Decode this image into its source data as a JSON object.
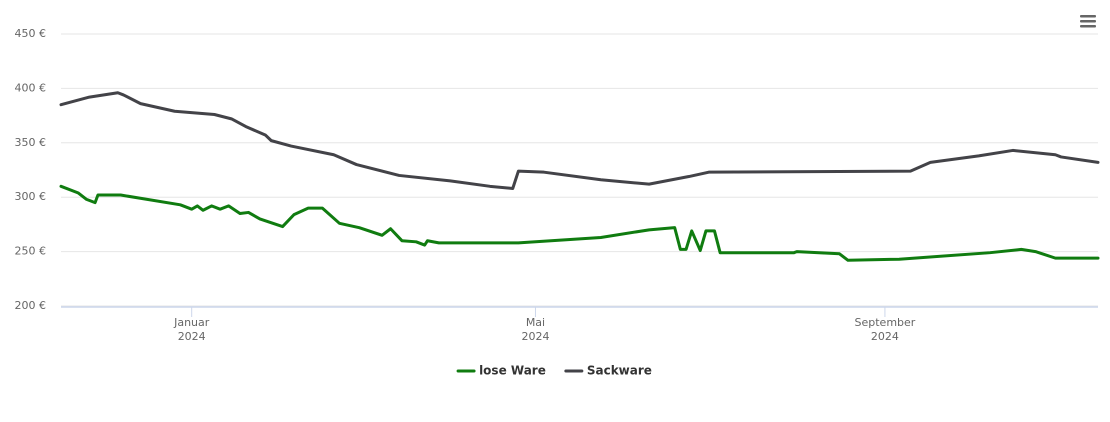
{
  "chart_data": {
    "type": "line",
    "series": [
      {
        "name": "lose Ware",
        "color": "#107c10",
        "x": [
          "2023-11-16",
          "2023-11-22",
          "2023-11-25",
          "2023-11-28",
          "2023-11-29",
          "2023-12-07",
          "2023-12-28",
          "2024-01-01",
          "2024-01-03",
          "2024-01-05",
          "2024-01-08",
          "2024-01-11",
          "2024-01-14",
          "2024-01-18",
          "2024-01-21",
          "2024-01-25",
          "2024-02-02",
          "2024-02-06",
          "2024-02-11",
          "2024-02-16",
          "2024-02-22",
          "2024-02-29",
          "2024-03-08",
          "2024-03-11",
          "2024-03-15",
          "2024-03-20",
          "2024-03-23",
          "2024-03-24",
          "2024-03-28",
          "2024-04-25",
          "2024-05-24",
          "2024-06-10",
          "2024-06-19",
          "2024-06-21",
          "2024-06-23",
          "2024-06-25",
          "2024-06-28",
          "2024-06-30",
          "2024-07-03",
          "2024-07-05",
          "2024-07-31",
          "2024-08-01",
          "2024-08-16",
          "2024-08-19",
          "2024-09-06",
          "2024-10-08",
          "2024-10-19",
          "2024-10-24",
          "2024-10-31",
          "2024-11-15"
        ],
        "values": [
          310,
          304,
          298,
          295,
          302,
          302,
          293,
          289,
          292,
          288,
          292,
          289,
          292,
          285,
          286,
          280,
          273,
          284,
          290,
          290,
          276,
          272,
          265,
          271,
          260,
          259,
          256,
          260,
          258,
          258,
          263,
          270,
          272,
          252,
          252,
          269,
          251,
          269,
          269,
          249,
          249,
          250,
          248,
          242,
          243,
          249,
          252,
          250,
          244,
          244
        ]
      },
      {
        "name": "Sackware",
        "color": "#434348",
        "x": [
          "2023-11-16",
          "2023-11-26",
          "2023-12-06",
          "2023-12-08",
          "2023-12-14",
          "2023-12-26",
          "2024-01-09",
          "2024-01-15",
          "2024-01-20",
          "2024-01-27",
          "2024-01-29",
          "2024-02-05",
          "2024-02-20",
          "2024-02-28",
          "2024-03-14",
          "2024-04-01",
          "2024-04-15",
          "2024-04-23",
          "2024-04-25",
          "2024-05-04",
          "2024-05-24",
          "2024-06-10",
          "2024-06-24",
          "2024-07-01",
          "2024-09-10",
          "2024-09-17",
          "2024-10-04",
          "2024-10-16",
          "2024-10-31",
          "2024-11-02",
          "2024-11-15"
        ],
        "values": [
          385,
          392,
          396,
          394,
          386,
          379,
          376,
          372,
          365,
          357,
          352,
          347,
          339,
          330,
          320,
          315,
          310,
          308,
          324,
          323,
          316,
          312,
          319,
          323,
          324,
          332,
          338,
          343,
          339,
          337,
          332
        ]
      }
    ],
    "xlim": [
      "2023-11-16",
      "2024-11-15"
    ],
    "xticks": [
      {
        "value": "2024-01-01",
        "label": [
          "Januar",
          "2024"
        ]
      },
      {
        "value": "2024-05-01",
        "label": [
          "Mai",
          "2024"
        ]
      },
      {
        "value": "2024-09-01",
        "label": [
          "September",
          "2024"
        ]
      }
    ],
    "ylim": [
      200,
      450
    ],
    "yticks": [
      {
        "value": 200,
        "label": "200 €"
      },
      {
        "value": 250,
        "label": "250 €"
      },
      {
        "value": 300,
        "label": "300 €"
      },
      {
        "value": 350,
        "label": "350 €"
      },
      {
        "value": 400,
        "label": "400 €"
      },
      {
        "value": 450,
        "label": "450 €"
      }
    ],
    "grid": true,
    "legend": "bottom"
  }
}
